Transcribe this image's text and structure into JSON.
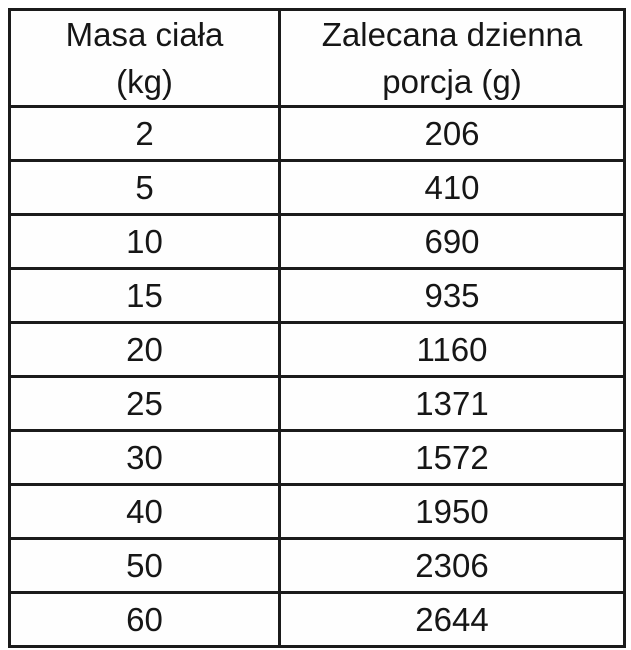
{
  "chart_data": {
    "type": "table",
    "columns": [
      "Masa ciała (kg)",
      "Zalecana dzienna porcja (g)"
    ],
    "rows": [
      [
        "2",
        "206"
      ],
      [
        "5",
        "410"
      ],
      [
        "10",
        "690"
      ],
      [
        "15",
        "935"
      ],
      [
        "20",
        "1160"
      ],
      [
        "25",
        "1371"
      ],
      [
        "30",
        "1572"
      ],
      [
        "40",
        "1950"
      ],
      [
        "50",
        "2306"
      ],
      [
        "60",
        "2644"
      ]
    ]
  },
  "colors": {
    "border": "#1b1b1b",
    "text": "#161616",
    "background": "#ffffff"
  }
}
